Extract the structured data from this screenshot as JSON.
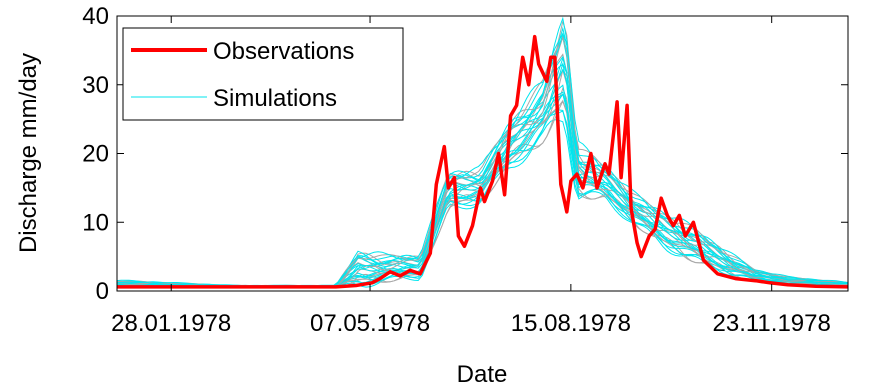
{
  "chart_data": {
    "type": "line",
    "xlabel": "Date",
    "ylabel": "Discharge mm/day",
    "xlim": [
      "1978-01-01",
      "1978-12-31"
    ],
    "ylim": [
      0,
      40
    ],
    "yticks": [
      0,
      10,
      20,
      30,
      40
    ],
    "xticks": [
      {
        "date": "1978-01-28",
        "label": "28.01.1978"
      },
      {
        "date": "1978-05-07",
        "label": "07.05.1978"
      },
      {
        "date": "1978-08-15",
        "label": "15.08.1978"
      },
      {
        "date": "1978-11-23",
        "label": "23.11.1978"
      }
    ],
    "grid": false,
    "legend": {
      "position": "top-left",
      "entries": [
        "Observations",
        "Simulations"
      ]
    },
    "colors": {
      "observations": "#ff0000",
      "simulations": "#00e5ee",
      "simulations_alt": "#a8a8a8"
    },
    "series": [
      {
        "name": "Observations",
        "x": [
          "1978-01-01",
          "1978-01-30",
          "1978-03-01",
          "1978-04-01",
          "1978-04-20",
          "1978-04-30",
          "1978-05-08",
          "1978-05-12",
          "1978-05-17",
          "1978-05-22",
          "1978-05-27",
          "1978-06-01",
          "1978-06-06",
          "1978-06-09",
          "1978-06-13",
          "1978-06-15",
          "1978-06-18",
          "1978-06-20",
          "1978-06-23",
          "1978-06-27",
          "1978-07-01",
          "1978-07-03",
          "1978-07-07",
          "1978-07-10",
          "1978-07-13",
          "1978-07-16",
          "1978-07-19",
          "1978-07-22",
          "1978-07-25",
          "1978-07-28",
          "1978-07-30",
          "1978-08-03",
          "1978-08-05",
          "1978-08-07",
          "1978-08-10",
          "1978-08-13",
          "1978-08-15",
          "1978-08-18",
          "1978-08-21",
          "1978-08-25",
          "1978-08-28",
          "1978-09-01",
          "1978-09-03",
          "1978-09-07",
          "1978-09-09",
          "1978-09-12",
          "1978-09-14",
          "1978-09-17",
          "1978-09-19",
          "1978-09-23",
          "1978-09-26",
          "1978-09-29",
          "1978-10-02",
          "1978-10-05",
          "1978-10-08",
          "1978-10-11",
          "1978-10-15",
          "1978-10-20",
          "1978-10-27",
          "1978-11-05",
          "1978-11-15",
          "1978-11-22",
          "1978-12-01",
          "1978-12-15",
          "1978-12-31"
        ],
        "y": [
          0.6,
          0.6,
          0.6,
          0.6,
          0.6,
          0.8,
          1.2,
          1.8,
          2.8,
          2.2,
          3.0,
          2.5,
          5.5,
          15.5,
          21.0,
          15.0,
          16.5,
          8.0,
          6.5,
          9.5,
          15.0,
          13.0,
          16.0,
          20.0,
          14.0,
          25.5,
          27.0,
          34.0,
          30.0,
          37.0,
          33.0,
          30.5,
          34.0,
          34.0,
          15.5,
          11.5,
          16.0,
          17.0,
          15.0,
          20.0,
          15.0,
          18.5,
          17.0,
          27.5,
          16.5,
          27.0,
          12.0,
          7.0,
          5.0,
          8.0,
          9.0,
          13.5,
          11.0,
          9.5,
          11.0,
          8.0,
          10.0,
          4.5,
          2.5,
          1.8,
          1.5,
          1.2,
          0.9,
          0.7,
          0.6
        ]
      },
      {
        "name": "Simulations",
        "note_ranges": "ensemble band",
        "x": [
          "1978-01-01",
          "1978-03-01",
          "1978-04-20",
          "1978-05-01",
          "1978-05-15",
          "1978-06-01",
          "1978-06-15",
          "1978-07-01",
          "1978-07-15",
          "1978-08-01",
          "1978-08-12",
          "1978-08-18",
          "1978-09-01",
          "1978-09-15",
          "1978-10-01",
          "1978-10-15",
          "1978-11-01",
          "1978-11-15",
          "1978-12-01",
          "1978-12-31"
        ],
        "y_low": [
          0.6,
          0.5,
          0.5,
          1.0,
          1.5,
          2.0,
          12.0,
          13.0,
          18.0,
          22.0,
          26.0,
          14.0,
          13.5,
          10.0,
          6.5,
          4.5,
          2.5,
          1.5,
          1.0,
          0.5
        ],
        "y_high": [
          1.5,
          0.8,
          0.8,
          5.5,
          5.0,
          5.0,
          17.0,
          17.5,
          24.0,
          30.0,
          40.0,
          21.0,
          18.0,
          14.0,
          11.0,
          9.0,
          5.5,
          3.0,
          2.0,
          1.2
        ]
      }
    ]
  }
}
